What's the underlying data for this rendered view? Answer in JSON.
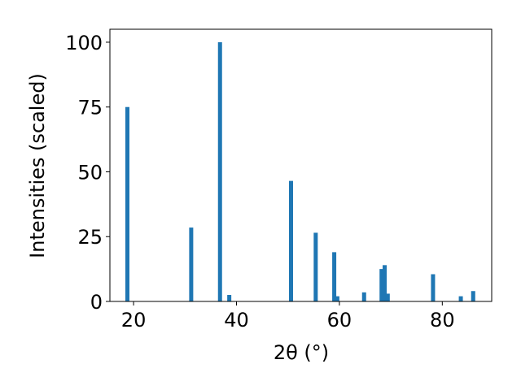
{
  "chart_data": {
    "type": "bar",
    "title": "",
    "xlabel": "2θ (°)",
    "ylabel": "Intensities (scaled)",
    "xlim": [
      15.4,
      89.6
    ],
    "ylim": [
      0,
      105
    ],
    "xticks": [
      20,
      40,
      60,
      80
    ],
    "yticks": [
      0,
      25,
      50,
      75,
      100
    ],
    "grid": false,
    "bar_color": "#1f77b4",
    "series": [
      {
        "x": [
          18.8,
          31.2,
          36.8,
          38.6,
          50.6,
          55.4,
          59.0,
          59.6,
          64.8,
          68.2,
          68.8,
          69.4,
          78.2,
          83.6,
          86.0
        ],
        "values": [
          75,
          28.5,
          100,
          2.5,
          46.5,
          26.5,
          19,
          2,
          3.5,
          12.5,
          14,
          3,
          10.5,
          2,
          4
        ]
      }
    ]
  }
}
